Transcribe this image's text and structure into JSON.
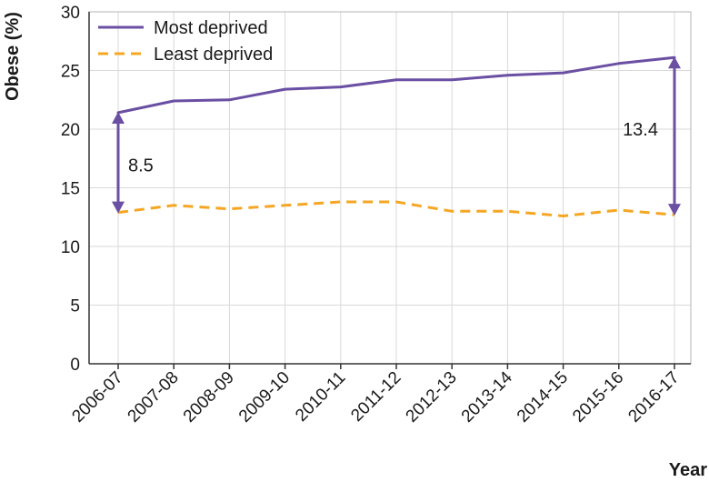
{
  "chart_data": {
    "type": "line",
    "title": "",
    "xlabel": "Year",
    "ylabel": "Obese (%)",
    "ylim": [
      0,
      30
    ],
    "yticks": [
      0,
      5,
      10,
      15,
      20,
      25,
      30
    ],
    "categories": [
      "2006-07",
      "2007-08",
      "2008-09",
      "2009-10",
      "2010-11",
      "2011-12",
      "2012-13",
      "2013-14",
      "2014-15",
      "2015-16",
      "2016-17"
    ],
    "series": [
      {
        "name": "Most deprived",
        "style": "solid",
        "color": "#6a4fa3",
        "values": [
          21.4,
          22.4,
          22.5,
          23.4,
          23.6,
          24.2,
          24.2,
          24.6,
          24.8,
          25.6,
          26.1
        ]
      },
      {
        "name": "Least deprived",
        "style": "dashed",
        "color": "#f5a623",
        "values": [
          12.9,
          13.5,
          13.2,
          13.5,
          13.8,
          13.8,
          13.0,
          13.0,
          12.6,
          13.1,
          12.7
        ]
      }
    ],
    "legend": "top-left",
    "annotations": [
      {
        "label": "8.5",
        "category": "2006-07"
      },
      {
        "label": "13.4",
        "category": "2016-17"
      }
    ]
  }
}
